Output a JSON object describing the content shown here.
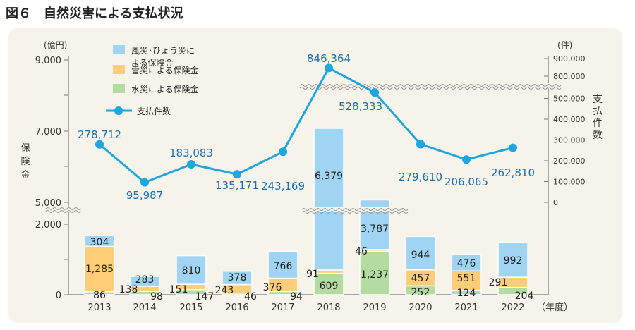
{
  "title": "図６　自然災害による支払状況",
  "chart_data": {
    "type": "bar+line",
    "categories": [
      "2013",
      "2014",
      "2015",
      "2016",
      "2017",
      "2018",
      "2019",
      "2020",
      "2021",
      "2022"
    ],
    "xlabel": "（年度）",
    "ylabel_left": "保険金",
    "ylabel_left_unit": "(億円)",
    "ylabel_right": "支払件数",
    "ylabel_right_unit": "(件)",
    "left_ticks": [
      "0",
      "2,000",
      "5,000",
      "7,000",
      "9,000"
    ],
    "right_ticks": [
      "0",
      "100,000",
      "200,000",
      "300,000",
      "400,000",
      "500,000",
      "800,000",
      "900,000"
    ],
    "left_axis_break": [
      2000,
      5000
    ],
    "right_axis_break": [
      550000,
      780000
    ],
    "series": [
      {
        "name": "水災による保険金",
        "kind": "bar",
        "color": "#b5dca0",
        "values": [
          86,
          98,
          147,
          46,
          94,
          609,
          1237,
          252,
          124,
          204
        ],
        "labels": [
          "86",
          "98",
          "147",
          "46",
          "94",
          "609",
          "1,237",
          "252",
          "124",
          "204"
        ]
      },
      {
        "name": "雪災による保険金",
        "kind": "bar",
        "color": "#ffcc77",
        "values": [
          1285,
          138,
          151,
          243,
          376,
          91,
          46,
          457,
          551,
          291
        ],
        "labels": [
          "1,285",
          "138",
          "151",
          "243",
          "376",
          "91",
          "46",
          "457",
          "551",
          "291"
        ]
      },
      {
        "name": "風災・ひょう災による保険金",
        "legend": [
          "風災･ひょう災に",
          "よる保険金"
        ],
        "kind": "bar",
        "color": "#9fd4f2",
        "values": [
          304,
          283,
          810,
          378,
          766,
          6379,
          3787,
          944,
          476,
          992
        ],
        "labels": [
          "304",
          "283",
          "810",
          "378",
          "766",
          "6,379",
          "3,787",
          "944",
          "476",
          "992"
        ]
      },
      {
        "name": "支払件数",
        "kind": "line",
        "axis": "right",
        "color": "#1ea6e0",
        "label_color": "#1a6fb3",
        "values": [
          278712,
          95987,
          183083,
          135171,
          243169,
          846364,
          528333,
          279610,
          206065,
          262810
        ],
        "labels": [
          "278,712",
          "95,987",
          "183,083",
          "135,171",
          "243,169",
          "846,364",
          "528,333",
          "279,610",
          "206,065",
          "262,810"
        ]
      }
    ],
    "legend_position": "top-left"
  }
}
